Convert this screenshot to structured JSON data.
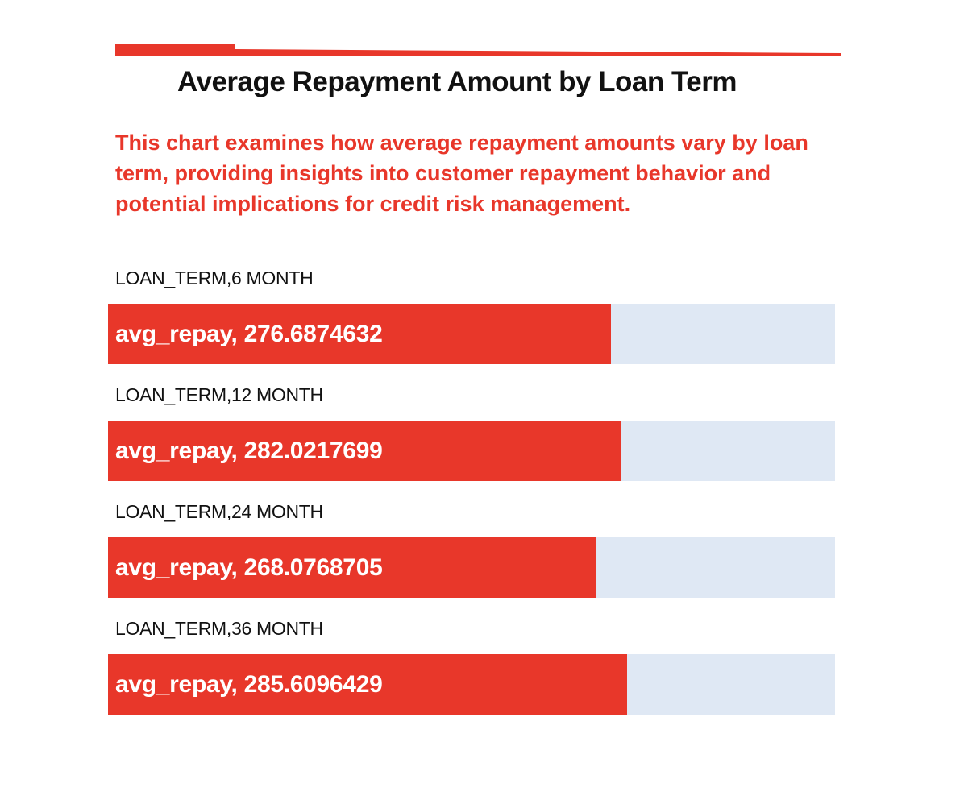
{
  "colors": {
    "accent": "#e8372a",
    "track": "#dfe8f4",
    "title": "#111111"
  },
  "header": {
    "title": "Average Repayment Amount by Loan Term",
    "subtitle": "This chart examines how average repayment amounts vary by loan term, providing insights into customer repayment behavior and potential implications for credit risk management."
  },
  "chart_data": {
    "type": "bar",
    "orientation": "horizontal",
    "title": "Average Repayment Amount by Loan Term",
    "categories": [
      "LOAN_TERM,6 MONTH",
      "LOAN_TERM,12 MONTH",
      "LOAN_TERM,24 MONTH",
      "LOAN_TERM,36 MONTH"
    ],
    "values": [
      276.6874632,
      282.0217699,
      268.0768705,
      285.6096429
    ],
    "bar_labels": [
      "avg_repay, 276.6874632",
      "avg_repay, 282.0217699",
      "avg_repay, 268.0768705",
      "avg_repay, 285.6096429"
    ],
    "xlim": [
      0,
      400
    ],
    "grid": false,
    "legend": "none"
  }
}
